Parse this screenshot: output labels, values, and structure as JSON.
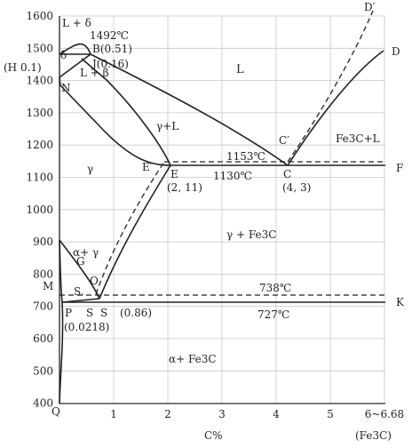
{
  "axes": {
    "y_ticks": [
      "1600",
      "1500",
      "1400",
      "1300",
      "1200",
      "1100",
      "1000",
      "900",
      "800",
      "700",
      "600",
      "500",
      "400"
    ],
    "x_ticks": [
      "1",
      "2",
      "3",
      "4",
      "5",
      "6~6.68"
    ],
    "x_origin_label": "Q",
    "x_axis_label": "C%",
    "x_end_label": "(Fe3C)"
  },
  "points": {
    "A": "",
    "B": "B(0.51)",
    "J": "J(0.16)",
    "H": "(H 0.1)",
    "N": "N",
    "D": "D",
    "D_prime": "D′",
    "C": "C",
    "C_prime": "C′",
    "C_comp": "(4, 3)",
    "E": "E",
    "E_prime": "E′",
    "E_comp": "(2, 11)",
    "F": "F",
    "K": "K",
    "G": "G",
    "O": "O",
    "M": "M",
    "P": "P",
    "P_comp": "(0.0218)",
    "S": "S",
    "S_prime": "S",
    "S_comp": "(0.86)"
  },
  "regions": {
    "L": "L",
    "L_delta": "L + δ",
    "delta": "δ",
    "L_beta": "L + β",
    "gamma": "γ",
    "gamma_L": "γ+L",
    "Fe3C_L": "Fe3C+L",
    "gamma_Fe3C": "γ + Fe3C",
    "alpha_gamma": "α+ γ",
    "alpha_Fe3C": "α+ Fe3C",
    "alpha": "S."
  },
  "temperatures": {
    "t1492": "1492℃",
    "t1153": "1153℃",
    "t1130": "1130℃",
    "t738": "738℃",
    "t727": "727℃"
  }
}
